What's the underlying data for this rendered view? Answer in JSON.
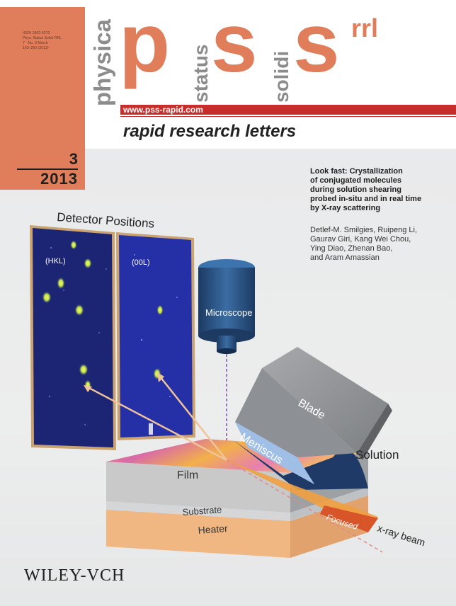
{
  "masthead": {
    "issn": "ISSN 1862-6270\nPhys. Status Solidi RRL\n7 · No. 3 March\n163–250 (2013)",
    "word_physica": "physica",
    "letter_p": "p",
    "word_status": "status",
    "letter_s1": "s",
    "word_solidi": "solidi",
    "letter_s2": "s",
    "superscript": "rrl",
    "url": "www.pss-rapid.com",
    "subtitle": "rapid research letters",
    "issue_number": "3",
    "issue_year": "2013"
  },
  "article": {
    "title": "Look fast: Crystallization\nof conjugated molecules\nduring solution shearing\nprobed in-situ and in real time\nby X-ray scattering",
    "authors": "Detlef-M. Smilgies, Ruipeng Li,\nGaurav Giri, Kang Wei Chou,\nYing Diao, Zhenan Bao,\nand Aram Amassian"
  },
  "figure": {
    "detector_title": "Detector Positions",
    "panel_left_label": "(HKL)",
    "panel_right_label": "(00L)",
    "microscope": "Microscope",
    "blade": "Blade",
    "meniscus": "Meniscus",
    "solution": "Solution",
    "film": "Film",
    "substrate": "Substrate",
    "heater": "Heater",
    "focused": "Focused",
    "beam": "x-ray beam"
  },
  "publisher": "WILEY-VCH",
  "colors": {
    "brand_orange": "#e07e5c",
    "url_bar_red": "#c62d2b",
    "detector_blue": "#1c2474",
    "microscope_blue": "#264d7a"
  }
}
